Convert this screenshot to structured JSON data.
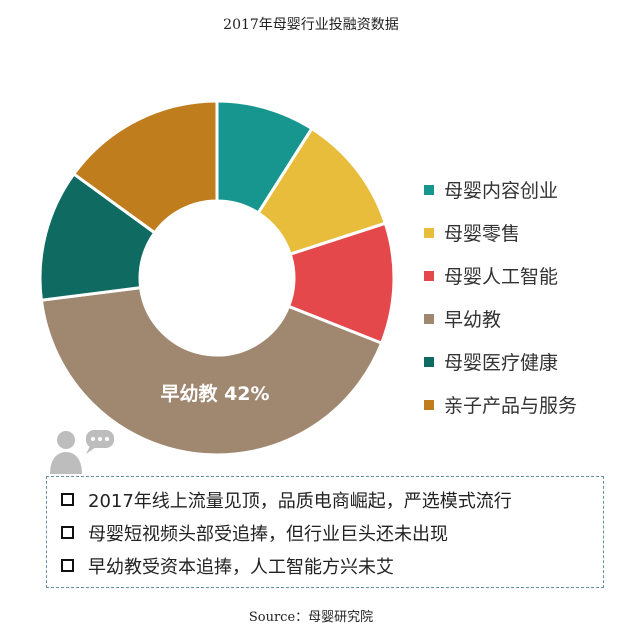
{
  "chart_data": {
    "type": "pie",
    "title": "2017年母婴行业投融资数据",
    "categories": [
      "母婴内容创业",
      "母婴零售",
      "母婴人工智能",
      "早幼教",
      "母婴医疗健康",
      "亲子产品与服务"
    ],
    "values": [
      9,
      11,
      11,
      42,
      12,
      15
    ],
    "colors": [
      "#17968f",
      "#e8bd3c",
      "#e5484a",
      "#a08770",
      "#0f6b62",
      "#bf7d1e"
    ],
    "center_hole": true,
    "data_labels": [
      {
        "category": "早幼教",
        "text": "早幼教  42%"
      }
    ],
    "legend_position": "right"
  },
  "bullets": [
    "2017年线上流量见顶，品质电商崛起，严选模式流行",
    "母婴短视频头部受追捧，但行业巨头还未出现",
    "早幼教受资本追捧，人工智能方兴未艾"
  ],
  "source": "Source：母婴研究院",
  "icons": {
    "person": "person-speech-icon",
    "checkbox": "checkbox-icon"
  }
}
